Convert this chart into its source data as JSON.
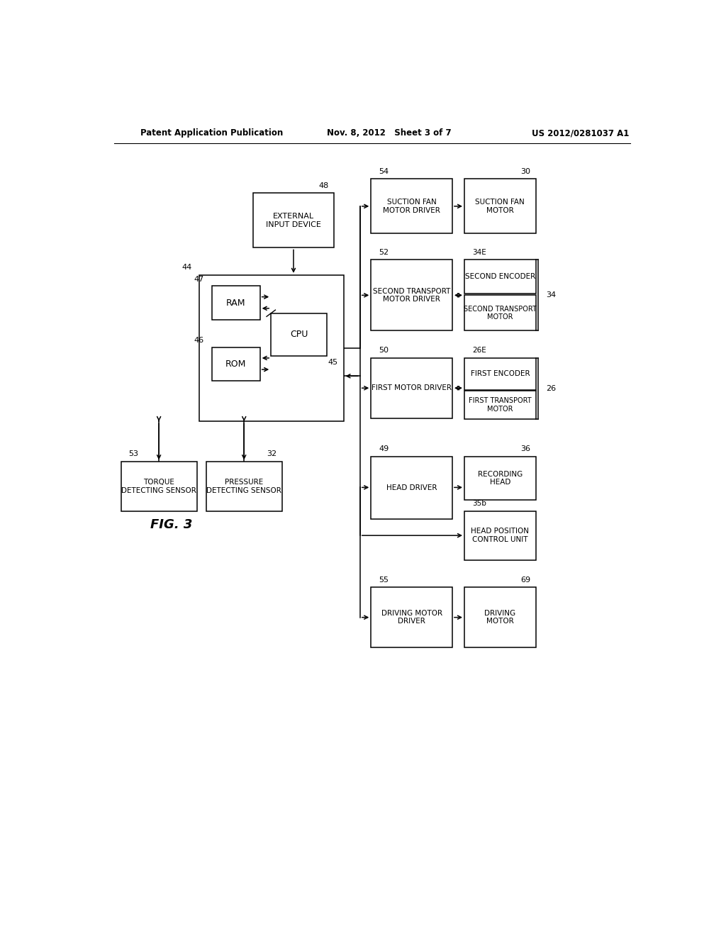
{
  "header_left": "Patent Application Publication",
  "header_center": "Nov. 8, 2012   Sheet 3 of 7",
  "header_right": "US 2012/0281037 A1",
  "fig_label": "FIG. 3",
  "background": "#ffffff"
}
